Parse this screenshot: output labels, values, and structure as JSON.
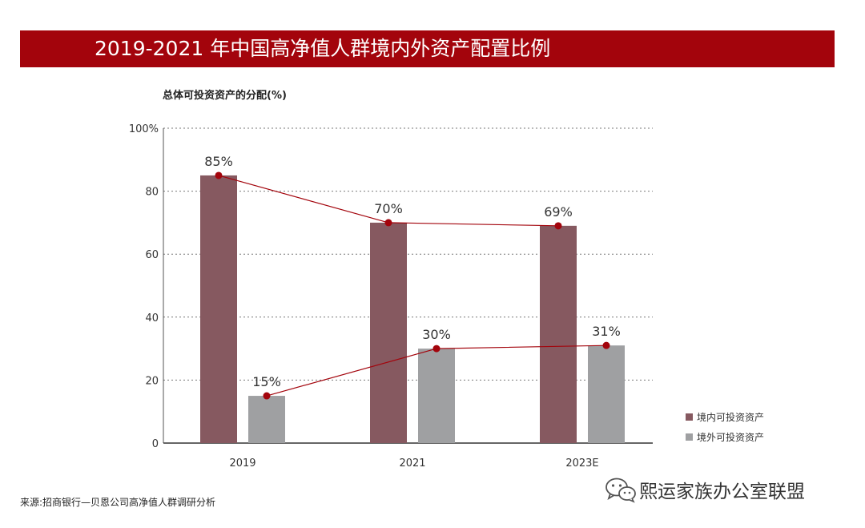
{
  "header": {
    "title": "2019-2021 年中国高净值人群境内外资产配置比例"
  },
  "chart_data": {
    "type": "bar",
    "subtitle": "总体可投资资产的分配(%)",
    "categories": [
      "2019",
      "2021",
      "2023E"
    ],
    "ylim": [
      0,
      100
    ],
    "yticks": [
      0,
      20,
      40,
      60,
      80,
      100
    ],
    "ytick_labels": [
      "0",
      "20",
      "40",
      "60",
      "80",
      "100%"
    ],
    "grid": true,
    "legend_position": "right",
    "series": [
      {
        "name": "境内可投资资产",
        "values": [
          85,
          70,
          69
        ],
        "labels": [
          "85%",
          "70%",
          "69%"
        ],
        "color": "#865960"
      },
      {
        "name": "境外可投资资产",
        "values": [
          15,
          30,
          31
        ],
        "labels": [
          "15%",
          "30%",
          "31%"
        ],
        "color": "#9fa0a2"
      }
    ],
    "trend_line_color": "#a3040c"
  },
  "source": "来源:招商银行—贝恩公司高净值人群调研分析",
  "watermark": {
    "icon": "wechat-icon",
    "text": "熙运家族办公室联盟"
  }
}
